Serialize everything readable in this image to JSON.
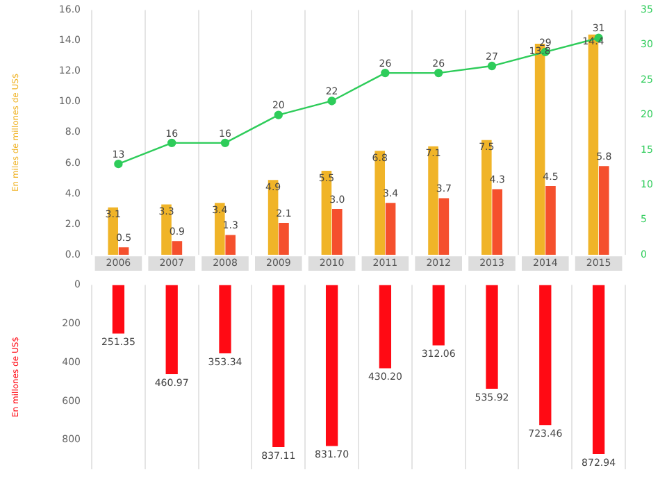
{
  "chart_data": [
    {
      "type": "bar",
      "categories": [
        "2006",
        "2007",
        "2008",
        "2009",
        "2010",
        "2011",
        "2012",
        "2013",
        "2014",
        "2015"
      ],
      "series": [
        {
          "color": "#f0b428",
          "values": [
            3.1,
            3.3,
            3.4,
            4.9,
            5.5,
            6.8,
            7.1,
            7.5,
            13.8,
            14.4
          ]
        },
        {
          "color": "#f5502d",
          "values": [
            0.5,
            0.9,
            1.3,
            2.1,
            3.0,
            3.4,
            3.7,
            4.3,
            4.5,
            5.8
          ],
          "value_labels": [
            "0.5",
            "0.9",
            "1.3",
            "2.1",
            "3.0",
            "3.4",
            "3.7",
            "4.3",
            "4.5",
            "5.8"
          ]
        },
        {
          "type": "line",
          "axis": "y2",
          "color": "#2ecc5a",
          "values": [
            13,
            16,
            16,
            20,
            22,
            26,
            26,
            27,
            29,
            31
          ]
        }
      ],
      "ylabel": "En miles de millones de US$",
      "ylim": [
        0,
        16
      ],
      "yticks": [
        {
          "value": 0,
          "label": "0.0"
        },
        {
          "value": 2,
          "label": "2.0"
        },
        {
          "value": 4,
          "label": "4.0"
        },
        {
          "value": 6,
          "label": "6.0"
        },
        {
          "value": 8,
          "label": "8.0"
        },
        {
          "value": 10,
          "label": "10.0"
        },
        {
          "value": 12,
          "label": "12.0"
        },
        {
          "value": 14,
          "label": "14.0"
        },
        {
          "value": 16,
          "label": "16.0"
        }
      ],
      "y2lim": [
        0,
        35
      ],
      "y2ticks": [
        0,
        5,
        10,
        15,
        20,
        25,
        30,
        35
      ],
      "grid": "x",
      "marker": "circle",
      "data_labels": true
    },
    {
      "type": "bar",
      "categories": [
        "2006",
        "2007",
        "2008",
        "2009",
        "2010",
        "2011",
        "2012",
        "2013",
        "2014",
        "2015"
      ],
      "values": [
        251.35,
        460.97,
        353.34,
        837.11,
        831.7,
        430.2,
        312.06,
        535.92,
        723.46,
        872.94
      ],
      "value_labels": [
        "251.35",
        "460.97",
        "353.34",
        "837.11",
        "831.70",
        "430.20",
        "312.06",
        "535.92",
        "723.46",
        "872.94"
      ],
      "color": "#ff0a14",
      "ylabel": "En millones de US$",
      "ylim": [
        950,
        0
      ],
      "yticks": [
        0,
        200,
        400,
        600,
        800
      ],
      "grid": "x",
      "tick_labels": "y"
    }
  ]
}
